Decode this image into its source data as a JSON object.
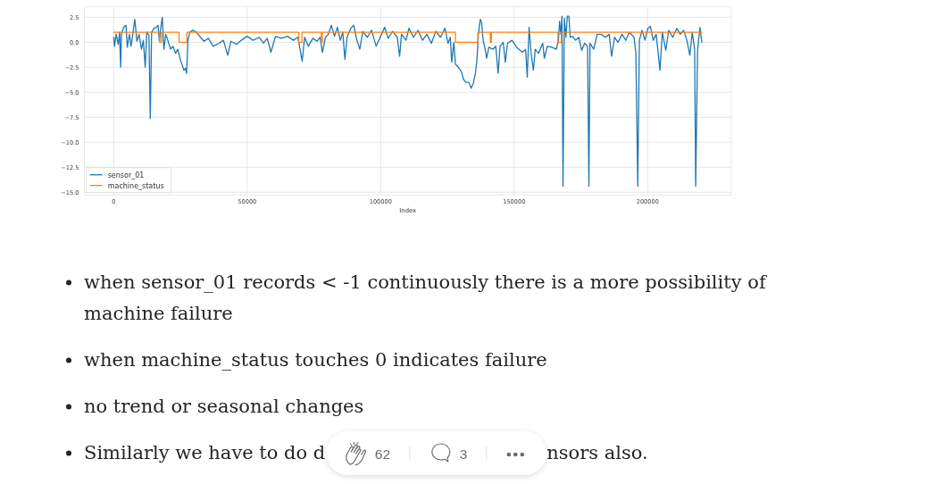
{
  "chart_data": {
    "type": "line",
    "xlabel": "Index",
    "xlim": [
      -11016,
      231335
    ],
    "ylim": [
      -15.27,
      3.54
    ],
    "xticks": [
      0,
      50000,
      100000,
      150000,
      200000
    ],
    "yticks": [
      2.5,
      {
        "value": 0,
        "label": "0.0"
      },
      {
        "value": -2.5,
        "label": "−2.5"
      },
      {
        "value": -5,
        "label": "−5.0"
      },
      {
        "value": -7.5,
        "label": "−7.5"
      },
      {
        "value": -10,
        "label": "−10.0"
      },
      {
        "value": -12.5,
        "label": "−12.5"
      },
      {
        "value": -15,
        "label": "−15.0"
      }
    ],
    "grid": true,
    "legend": "bottom left",
    "series": [
      {
        "name": "sensor_01",
        "color": "#1f77b4",
        "x": [
          0,
          300,
          900,
          1700,
          2200,
          2600,
          2900,
          3700,
          4600,
          5100,
          5900,
          6500,
          7300,
          7900,
          8700,
          9500,
          10400,
          11100,
          11800,
          12400,
          13200,
          13700,
          14200,
          15100,
          16000,
          16600,
          17100,
          17600,
          18200,
          18800,
          19500,
          20400,
          21300,
          22200,
          23200,
          24000,
          24900,
          25700,
          26300,
          26900,
          27300,
          27800,
          28500,
          29600,
          31000,
          32500,
          33800,
          35500,
          37200,
          39400,
          41100,
          42700,
          43900,
          46100,
          47800,
          50000,
          52200,
          54500,
          56100,
          57500,
          58900,
          60600,
          62800,
          65100,
          67300,
          69000,
          69800,
          70600,
          71500,
          72900,
          74600,
          76200,
          77300,
          78200,
          79300,
          80400,
          81500,
          82700,
          83800,
          84900,
          85800,
          86600,
          87400,
          88800,
          89900,
          91100,
          92200,
          93300,
          95000,
          96600,
          98300,
          100000,
          101500,
          102800,
          104500,
          106200,
          107100,
          107800,
          109500,
          110600,
          112300,
          114000,
          115700,
          117300,
          119000,
          120700,
          122400,
          124100,
          125200,
          126100,
          126600,
          127400,
          128000,
          129100,
          130200,
          131000,
          131900,
          133000,
          133900,
          134700,
          135500,
          136100,
          136600,
          137300,
          137800,
          138400,
          139200,
          139700,
          140500,
          142000,
          143100,
          144000,
          144700,
          145900,
          146700,
          147500,
          149200,
          150900,
          153100,
          154300,
          154900,
          155600,
          156300,
          157200,
          157900,
          159100,
          160700,
          161300,
          162400,
          164100,
          165800,
          166600,
          167000,
          167500,
          167900,
          168300,
          168800,
          169400,
          169900,
          170500,
          171000,
          171900,
          173000,
          174200,
          175300,
          176400,
          177500,
          178000,
          178400,
          179800,
          181100,
          182600,
          184200,
          185600,
          186500,
          187600,
          188900,
          190400,
          191800,
          193200,
          194900,
          195600,
          196300,
          196900,
          197900,
          199000,
          200100,
          201000,
          202100,
          203200,
          204600,
          205500,
          206800,
          207900,
          209400,
          210900,
          212200,
          213500,
          214700,
          215800,
          216700,
          217600,
          218000,
          218700,
          219600,
          220300
        ],
        "values": [
          0.5,
          -0.4,
          0.8,
          -0.2,
          1.0,
          -2.5,
          0.8,
          1.5,
          1.7,
          -0.5,
          0.8,
          -0.4,
          1.1,
          2.3,
          0.1,
          0.8,
          -0.7,
          0.2,
          -2.5,
          1.0,
          0.7,
          -7.6,
          1.0,
          1.4,
          1.5,
          1.7,
          0.1,
          1.4,
          2.5,
          -0.7,
          0.8,
          0.1,
          -0.7,
          -0.4,
          -1.1,
          -0.7,
          -1.7,
          -2.3,
          -2.8,
          -2.6,
          -3.1,
          0.2,
          1.0,
          1.2,
          1.0,
          0.5,
          0.1,
          0.4,
          -0.4,
          -0.1,
          0.2,
          -1.3,
          0.1,
          -0.2,
          0.2,
          0.6,
          0.2,
          0.5,
          -0.1,
          0.4,
          -1.0,
          0.6,
          0.4,
          0.6,
          0.2,
          0.5,
          -0.7,
          -1.9,
          0.5,
          -0.4,
          0.4,
          0.1,
          0.5,
          -1.0,
          0.5,
          0.8,
          1.7,
          0.6,
          1.5,
          0.2,
          1.0,
          -1.7,
          0.5,
          1.4,
          1.7,
          0.2,
          -0.7,
          1.1,
          0.5,
          1.2,
          -0.4,
          0.6,
          1.5,
          0.4,
          1.1,
          0.5,
          -1.4,
          0.8,
          0.2,
          1.4,
          0.5,
          1.2,
          0.2,
          0.8,
          -0.1,
          1.1,
          0.5,
          1.4,
          -0.1,
          0.5,
          -2.0,
          0.0,
          -2.2,
          -2.5,
          -2.9,
          -3.7,
          -4.0,
          -4.0,
          -4.6,
          -4.1,
          -3.1,
          -1.6,
          0.8,
          2.3,
          2.0,
          0.2,
          -0.8,
          -1.6,
          -0.5,
          -0.7,
          -0.4,
          -3.1,
          -0.4,
          0.0,
          -2.0,
          -0.1,
          0.2,
          -0.5,
          -1.0,
          -0.7,
          -3.5,
          1.5,
          -1.0,
          -2.8,
          -0.7,
          -1.1,
          -0.1,
          -1.6,
          -0.4,
          -0.5,
          -0.7,
          0.2,
          2.1,
          0.8,
          2.6,
          -14.4,
          2.4,
          0.5,
          2.6,
          2.6,
          0.5,
          0.6,
          0.2,
          0.5,
          -0.8,
          -0.1,
          -0.4,
          -14.4,
          -0.1,
          -0.7,
          0.8,
          0.8,
          0.5,
          0.8,
          -1.4,
          0.5,
          0.0,
          0.8,
          0.2,
          1.0,
          0.5,
          -1.1,
          -14.4,
          0.2,
          1.2,
          0.2,
          1.4,
          1.6,
          0.2,
          0.8,
          -2.8,
          1.0,
          -0.8,
          1.2,
          0.5,
          1.4,
          0.8,
          1.2,
          0.2,
          -1.3,
          1.0,
          -0.7,
          -14.4,
          -0.8,
          1.5,
          0.0
        ]
      },
      {
        "name": "machine_status",
        "color": "#ff7f0e",
        "type": "step",
        "x": [
          0,
          17200,
          17900,
          24500,
          27400,
          69300,
          70500,
          77800,
          78100,
          128000,
          136400,
          141100,
          141500,
          166400,
          167700,
          220300
        ],
        "values": [
          1,
          0,
          1,
          0,
          1,
          0,
          1,
          0,
          1,
          0,
          1,
          0,
          1,
          0,
          1,
          1
        ]
      }
    ],
    "annotations": [
      "when sensor_01 records < -1 continuously there is a more possibility of machine failure",
      "when machine_status touches 0 indicates failure",
      "no trend or seasonal changes",
      "Similarly we have to do d",
      "62",
      "3",
      "nsors also."
    ]
  }
}
